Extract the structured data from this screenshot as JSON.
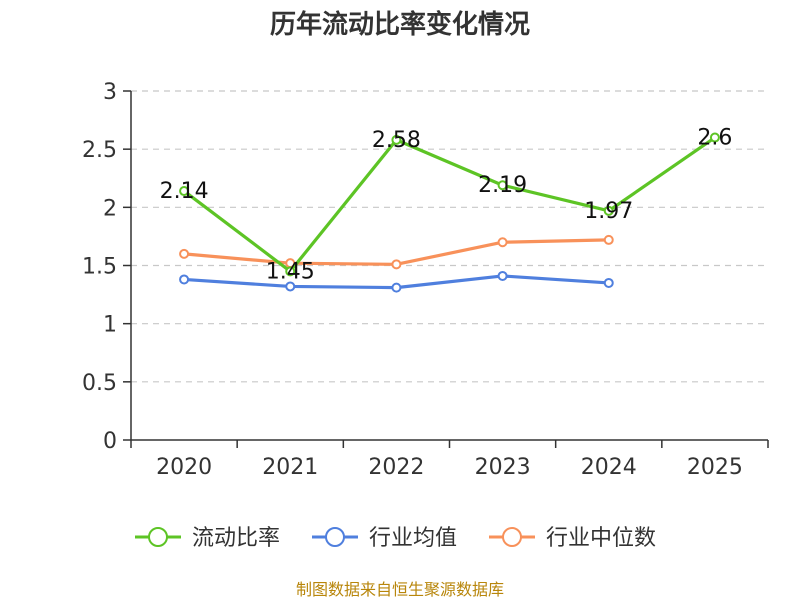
{
  "chart_data": {
    "type": "line",
    "title": "历年流动比率变化情况",
    "categories": [
      "2020",
      "2021",
      "2022",
      "2023",
      "2024",
      "2025"
    ],
    "ylim": [
      0,
      3
    ],
    "yticks": [
      0,
      0.5,
      1,
      1.5,
      2,
      2.5,
      3
    ],
    "ytick_labels": [
      "0",
      "0.5",
      "1",
      "1.5",
      "2",
      "2.5",
      "3"
    ],
    "grid": true,
    "legend_position": "bottom",
    "series": [
      {
        "name": "流动比率",
        "color": "#5dc425",
        "values": [
          2.14,
          1.45,
          2.58,
          2.19,
          1.97,
          2.6
        ],
        "labels": [
          "2.14",
          "1.45",
          "2.58",
          "2.19",
          "1.97",
          "2.6"
        ]
      },
      {
        "name": "行业均值",
        "color": "#4f7fde",
        "values": [
          1.38,
          1.32,
          1.31,
          1.41,
          1.35,
          null
        ]
      },
      {
        "name": "行业中位数",
        "color": "#f8915a",
        "values": [
          1.6,
          1.52,
          1.51,
          1.7,
          1.72,
          null
        ]
      }
    ],
    "source": "制图数据来自恒生聚源数据库"
  }
}
